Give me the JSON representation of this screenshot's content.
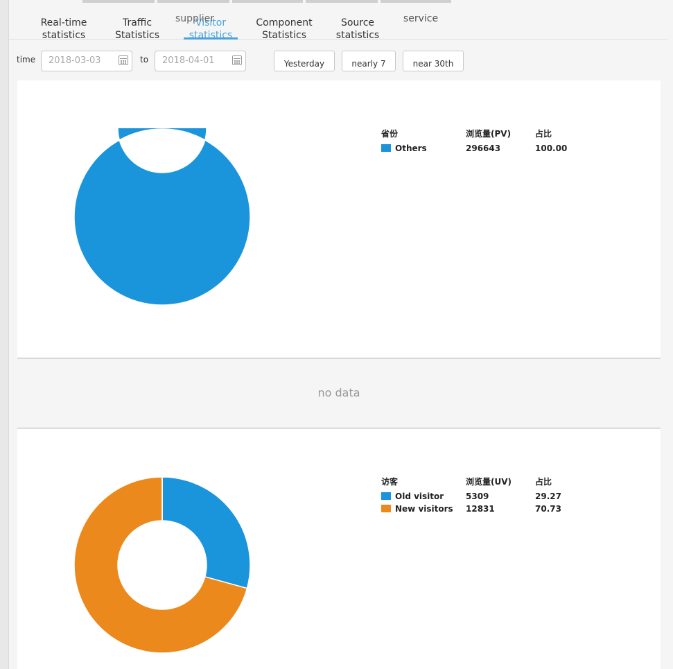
{
  "colors": {
    "blue": "#1a95dc",
    "orange": "#ec891d",
    "accent": "#4aa3df"
  },
  "tabs": [
    {
      "line1": "Real-time",
      "line2": "statistics"
    },
    {
      "line1": "Traffic",
      "line2": "Statistics"
    },
    {
      "line1": "Visitor",
      "line2": "statistics",
      "overlay": "supplier",
      "active": true
    },
    {
      "line1": "Component",
      "line2": "Statistics"
    },
    {
      "line1": "Source",
      "line2": "statistics"
    },
    {
      "line1": "service",
      "line2": ""
    }
  ],
  "filter": {
    "time_label": "time",
    "to_label": "to",
    "start_date": "2018-03-03",
    "end_date": "2018-04-01",
    "buttons": [
      "Yesterday",
      "nearly 7",
      "near 30th"
    ]
  },
  "province_chart": {
    "headers": [
      "省份",
      "浏览量(PV)",
      "占比"
    ],
    "rows": [
      {
        "name": "Others",
        "value": "296643",
        "pct": "100.00",
        "color": "#1a95dc"
      }
    ]
  },
  "no_data_text": "no data",
  "visitor_chart": {
    "headers": [
      "访客",
      "浏览量(UV)",
      "占比"
    ],
    "rows": [
      {
        "name": "Old visitor",
        "value": "5309",
        "pct": "29.27",
        "color": "#1a95dc"
      },
      {
        "name": "New visitors",
        "value": "12831",
        "pct": "70.73",
        "color": "#ec891d"
      }
    ]
  },
  "chart_data": [
    {
      "type": "pie",
      "categories": [
        "Others"
      ],
      "values": [
        296643
      ],
      "percentages": [
        100.0
      ]
    },
    {
      "type": "pie",
      "categories": [
        "Old visitor",
        "New visitors"
      ],
      "values": [
        5309,
        12831
      ],
      "percentages": [
        29.27,
        70.73
      ]
    }
  ]
}
